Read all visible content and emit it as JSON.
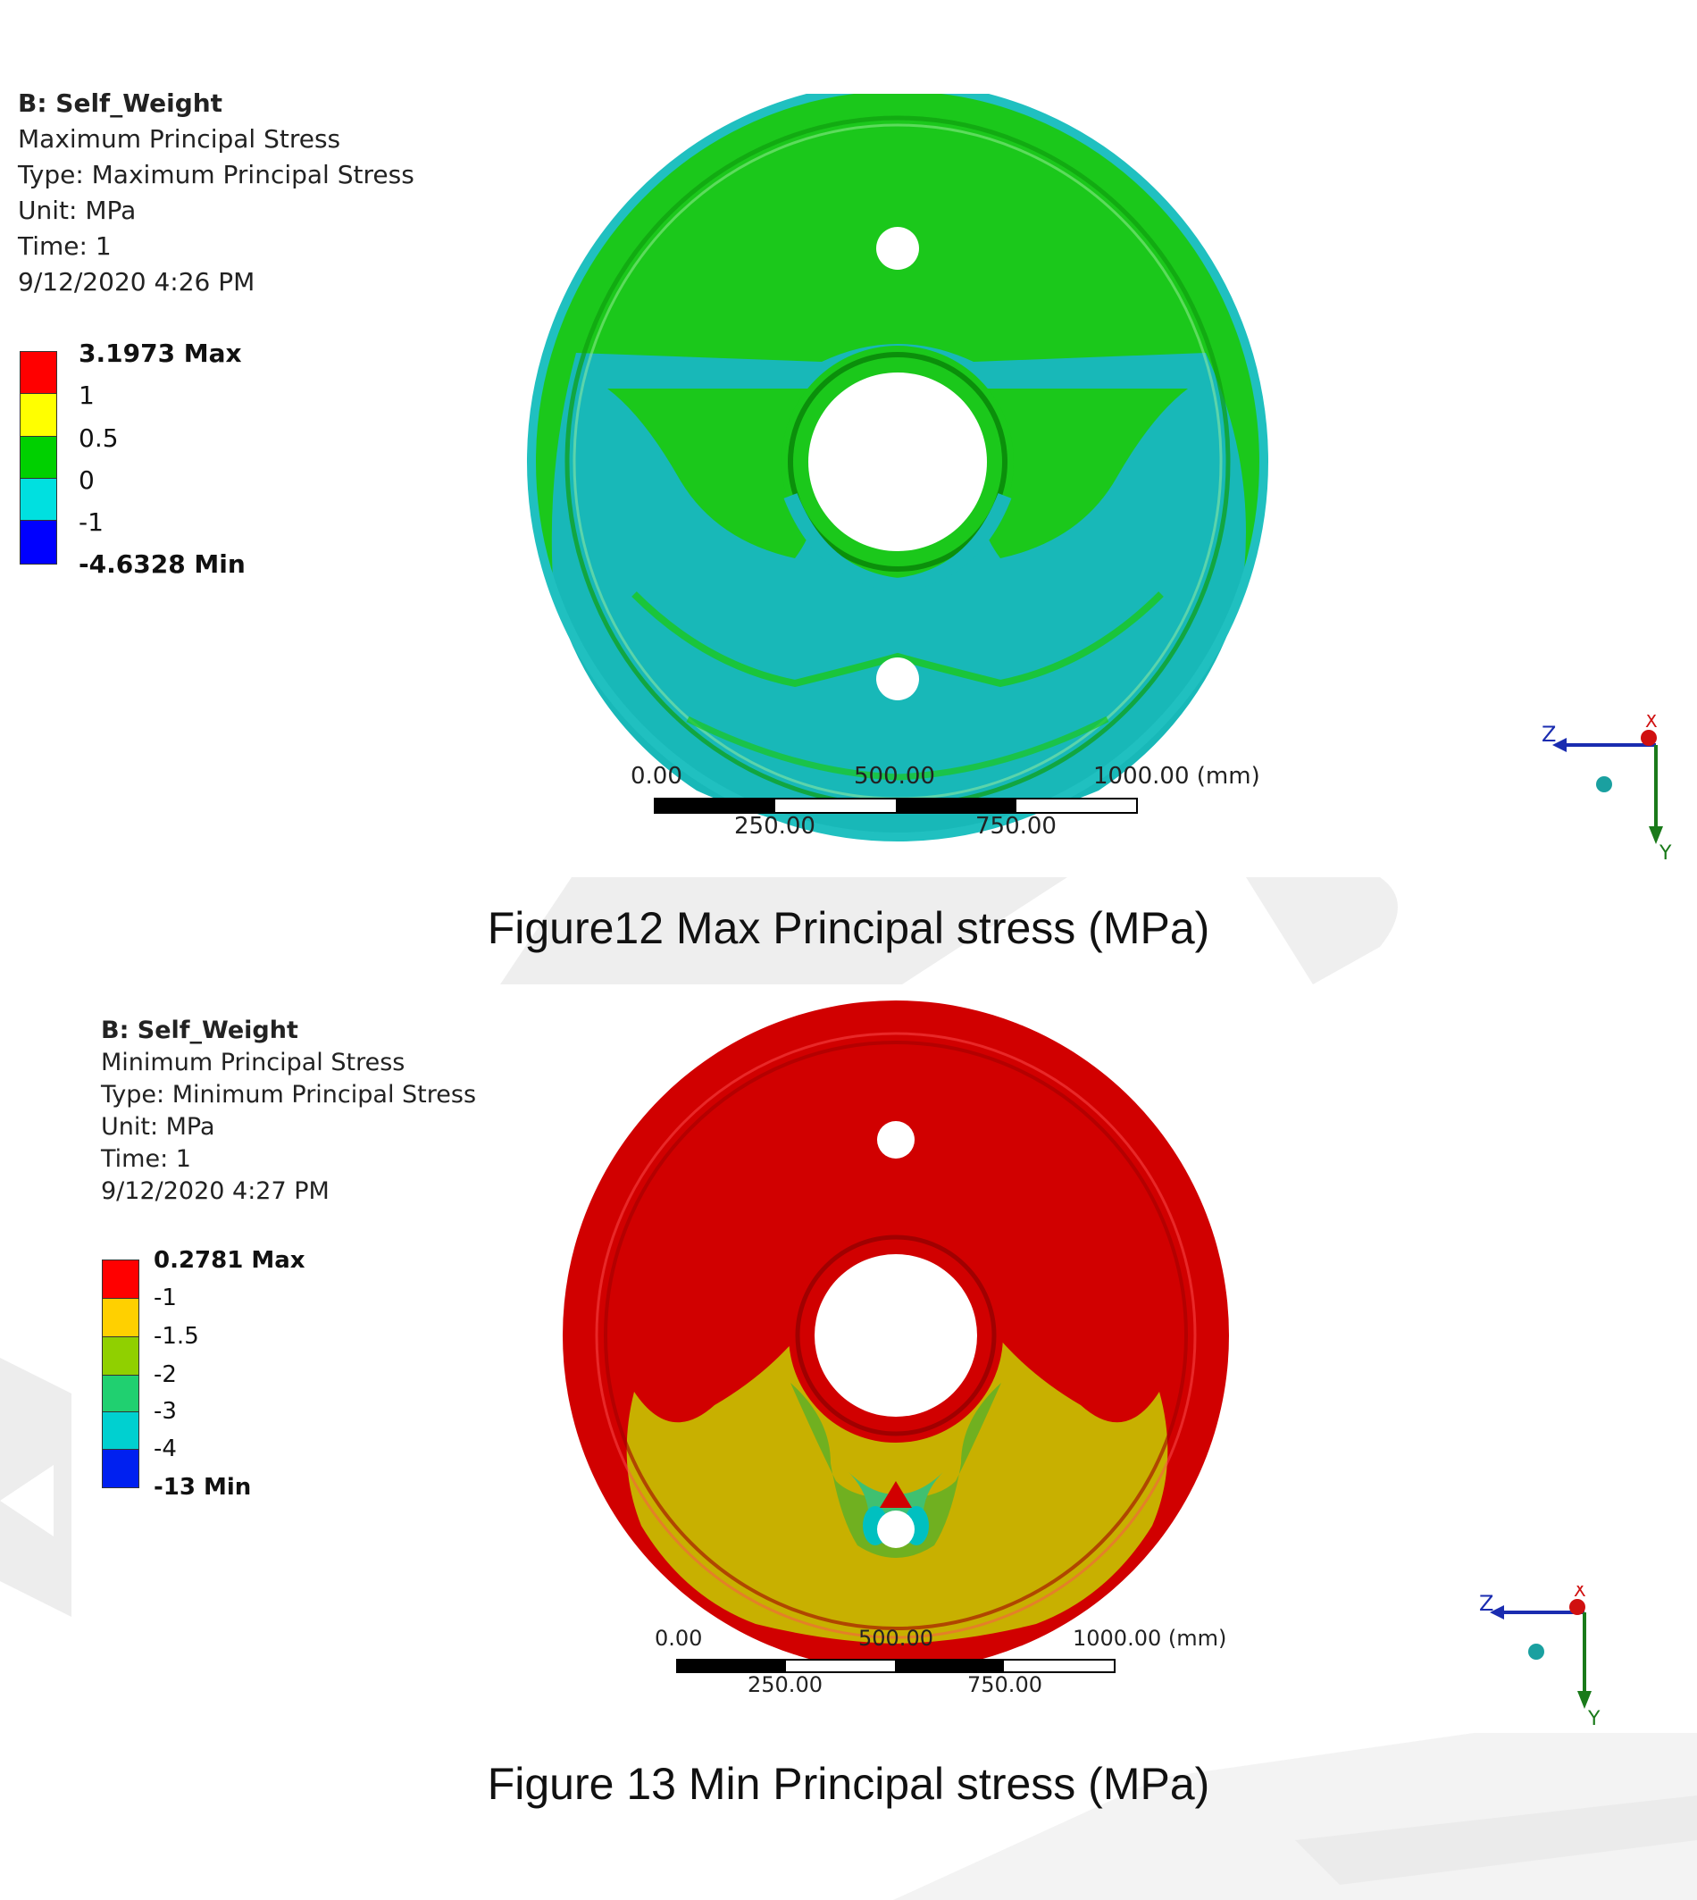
{
  "figure12": {
    "header": "B: Self_Weight",
    "result_name": "Maximum Principal Stress",
    "type_line": "Type: Maximum Principal Stress",
    "unit_line": "Unit: MPa",
    "time_line": "Time: 1",
    "datetime": "9/12/2020 4:26 PM",
    "legend": [
      {
        "label": "3.1973 Max",
        "color": "#ff0000",
        "bold": true
      },
      {
        "label": "1",
        "color": "#ffff00",
        "bold": false
      },
      {
        "label": "0.5",
        "color": "#00d000",
        "bold": false
      },
      {
        "label": "0",
        "color": "#00e0e0",
        "bold": false
      },
      {
        "label": "-1",
        "color": "#0000ff",
        "bold": false
      },
      {
        "label": "-4.6328 Min",
        "color": "",
        "bold": true
      }
    ],
    "scale": {
      "l0": "0.00",
      "l500": "500.00",
      "l1000": "1000.00 (mm)",
      "l250": "250.00",
      "l750": "750.00"
    },
    "triad": {
      "z": "Z",
      "x": "X",
      "y": "Y"
    },
    "caption": "Figure12 Max Principal stress (MPa)"
  },
  "figure13": {
    "header": "B: Self_Weight",
    "result_name": "Minimum Principal Stress",
    "type_line": "Type: Minimum Principal Stress",
    "unit_line": "Unit: MPa",
    "time_line": "Time: 1",
    "datetime": "9/12/2020 4:27 PM",
    "legend": [
      {
        "label": "0.2781 Max",
        "color": "#ff0000",
        "bold": true
      },
      {
        "label": "-1",
        "color": "#ffd000",
        "bold": false
      },
      {
        "label": "-1.5",
        "color": "#90d000",
        "bold": false
      },
      {
        "label": "-2",
        "color": "#20d070",
        "bold": false
      },
      {
        "label": "-3",
        "color": "#00d0d0",
        "bold": false
      },
      {
        "label": "-4",
        "color": "#0020f0",
        "bold": false
      },
      {
        "label": "-13 Min",
        "color": "",
        "bold": true
      }
    ],
    "scale": {
      "l0": "0.00",
      "l500": "500.00",
      "l1000": "1000.00 (mm)",
      "l250": "250.00",
      "l750": "750.00"
    },
    "triad": {
      "z": "Z",
      "x": "X",
      "y": "Y"
    },
    "caption": "Figure 13 Min Principal stress (MPa)"
  }
}
